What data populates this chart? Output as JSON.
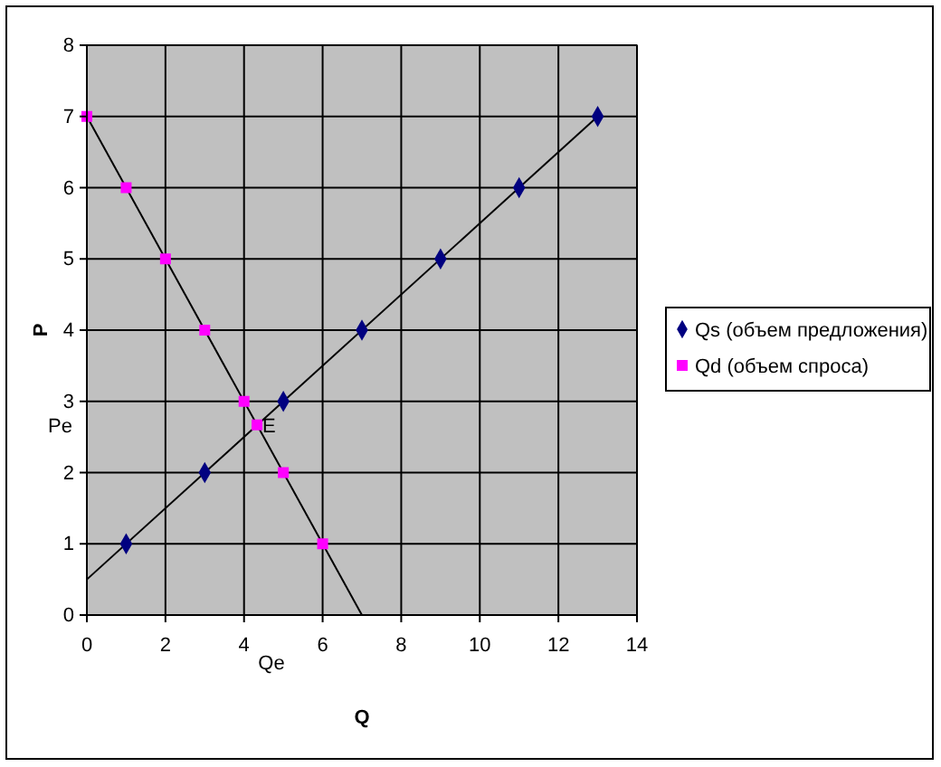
{
  "chart_data": {
    "type": "scatter",
    "xlabel": "Q",
    "ylabel": "P",
    "xlim": [
      0,
      14
    ],
    "ylim": [
      0,
      8
    ],
    "xticks": [
      0,
      2,
      4,
      6,
      8,
      10,
      12,
      14
    ],
    "yticks": [
      0,
      1,
      2,
      3,
      4,
      5,
      6,
      7,
      8
    ],
    "grid": true,
    "legend": "right",
    "series": [
      {
        "type": "line",
        "color": "#000000",
        "marker": "none",
        "x": [
          0,
          13
        ],
        "values": [
          0.5,
          7
        ]
      },
      {
        "type": "line",
        "color": "#000000",
        "marker": "none",
        "x": [
          0,
          7
        ],
        "values": [
          7,
          0
        ]
      },
      {
        "name": "Qs (объем предложения)",
        "color": "#000080",
        "marker": "diamond",
        "x": [
          1,
          3,
          5,
          7,
          9,
          11,
          13
        ],
        "values": [
          1,
          2,
          3,
          4,
          5,
          6,
          7
        ]
      },
      {
        "name": "Qd (объем спроса)",
        "color": "#ff00ff",
        "marker": "square",
        "x": [
          0,
          1,
          2,
          3,
          4,
          4.33,
          5,
          6
        ],
        "values": [
          7,
          6,
          5,
          4,
          3,
          2.67,
          2,
          1
        ]
      }
    ],
    "annotations": [
      "Pe",
      "Qe",
      {
        "text": "E",
        "x": 4.33,
        "y": 2.67
      }
    ]
  }
}
